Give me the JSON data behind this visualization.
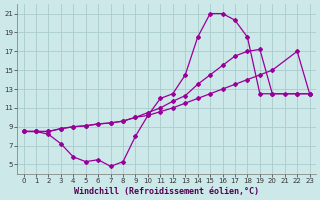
{
  "xlabel": "Windchill (Refroidissement éolien,°C)",
  "bg_color": "#cce8e8",
  "grid_color": "#aacccc",
  "line_color": "#990099",
  "xlim": [
    -0.5,
    23.5
  ],
  "ylim": [
    4,
    22
  ],
  "yticks": [
    5,
    7,
    9,
    11,
    13,
    15,
    17,
    19,
    21
  ],
  "xticks": [
    0,
    1,
    2,
    3,
    4,
    5,
    6,
    7,
    8,
    9,
    10,
    11,
    12,
    13,
    14,
    15,
    16,
    17,
    18,
    19,
    20,
    21,
    22,
    23
  ],
  "line1_x": [
    0,
    1,
    2,
    3,
    4,
    5,
    6,
    7,
    8,
    9,
    10,
    11,
    12,
    13,
    14,
    15,
    16,
    17,
    18,
    19,
    20,
    21,
    22,
    23
  ],
  "line1_y": [
    8.5,
    8.5,
    8.2,
    7.2,
    5.8,
    5.3,
    5.5,
    4.8,
    5.3,
    8.0,
    10.2,
    12.0,
    12.5,
    14.5,
    18.5,
    21.0,
    21.0,
    20.3,
    18.5,
    12.5,
    12.5,
    12.5,
    12.5,
    12.5
  ],
  "line2_x": [
    0,
    1,
    2,
    3,
    4,
    5,
    6,
    7,
    8,
    9,
    10,
    11,
    12,
    13,
    14,
    15,
    16,
    17,
    18,
    19,
    20,
    22,
    23
  ],
  "line2_y": [
    8.5,
    8.5,
    8.5,
    8.8,
    9.0,
    9.1,
    9.3,
    9.4,
    9.6,
    10.0,
    10.5,
    11.0,
    11.7,
    12.3,
    13.5,
    14.5,
    15.5,
    16.5,
    17.0,
    17.2,
    12.5,
    12.5,
    12.5
  ],
  "line3_x": [
    0,
    1,
    2,
    3,
    4,
    5,
    6,
    7,
    8,
    9,
    10,
    11,
    12,
    13,
    14,
    15,
    16,
    17,
    18,
    19,
    20,
    22,
    23
  ],
  "line3_y": [
    8.5,
    8.5,
    8.5,
    8.8,
    9.0,
    9.1,
    9.3,
    9.4,
    9.6,
    10.0,
    10.2,
    10.6,
    11.0,
    11.5,
    12.0,
    12.5,
    13.0,
    13.5,
    14.0,
    14.5,
    15.0,
    17.0,
    12.5
  ],
  "marker": "D",
  "markersize": 2.0,
  "linewidth": 0.9,
  "tick_fontsize": 5.0,
  "label_fontsize": 6.0
}
